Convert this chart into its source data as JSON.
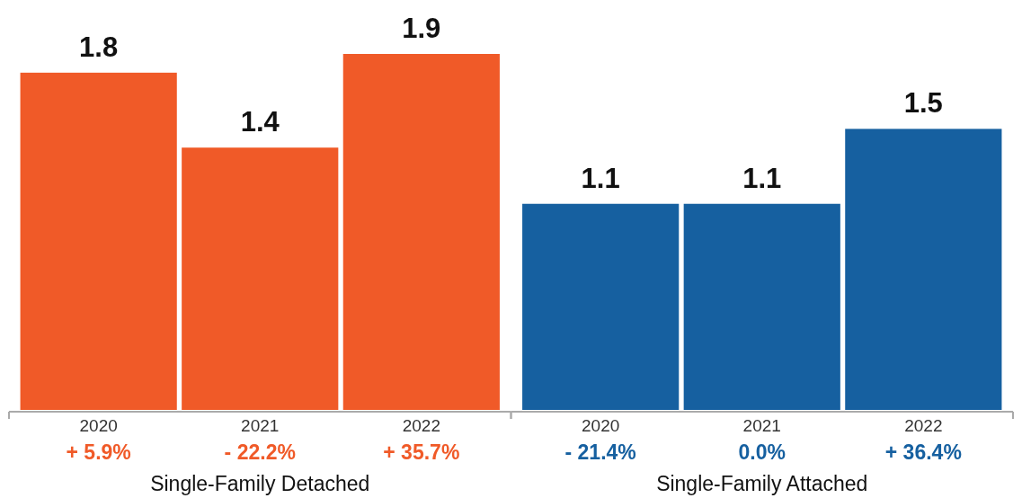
{
  "chart_data": [
    {
      "type": "bar",
      "xlabel": "Single-Family Detached",
      "categories": [
        "2020",
        "2021",
        "2022"
      ],
      "values": [
        1.8,
        1.4,
        1.9
      ],
      "color": "#f05a28",
      "data_labels": true,
      "annotations": [
        "+ 5.9%",
        "- 22.2%",
        "+ 35.7%"
      ]
    },
    {
      "type": "bar",
      "xlabel": "Single-Family Attached",
      "categories": [
        "2020",
        "2021",
        "2022"
      ],
      "values": [
        1.1,
        1.1,
        1.5
      ],
      "color": "#1660a0",
      "data_labels": true,
      "annotations": [
        "- 21.4%",
        "0.0%",
        "+ 36.4%"
      ]
    }
  ]
}
